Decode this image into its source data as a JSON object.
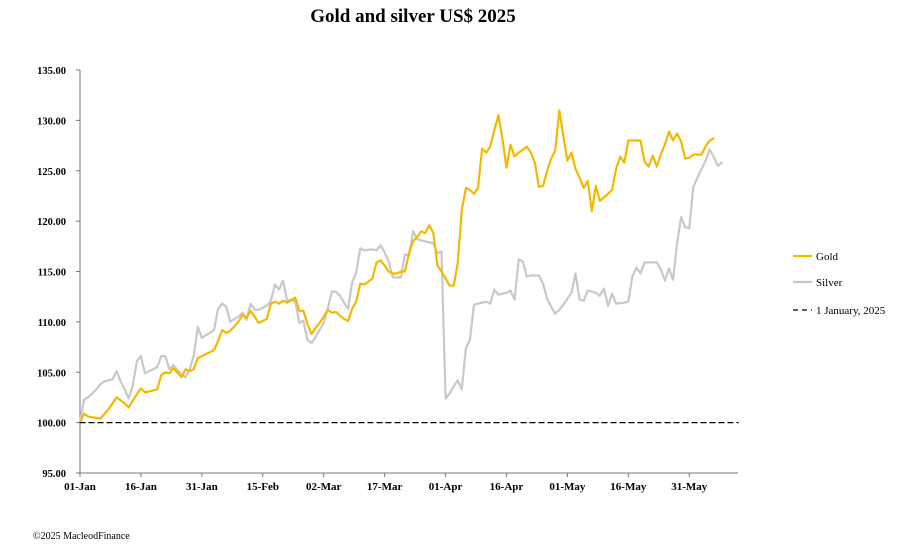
{
  "chart_data": {
    "type": "line",
    "title": "Gold and silver  US$ 2025",
    "ylim": [
      95,
      135
    ],
    "yticks": [
      "95.00",
      "100.00",
      "105.00",
      "110.00",
      "115.00",
      "120.00",
      "125.00",
      "130.00",
      "135.00"
    ],
    "x_tick_labels": [
      "01-Jan",
      "16-Jan",
      "31-Jan",
      "15-Feb",
      "02-Mar",
      "17-Mar",
      "01-Apr",
      "16-Apr",
      "01-May",
      "16-May",
      "31-May"
    ],
    "x_range_days": [
      0,
      162
    ],
    "grid": false,
    "legend_position": "right",
    "series": [
      {
        "name": "Gold",
        "color": "#F5B800",
        "dash": "",
        "points": [
          [
            0,
            100.0
          ],
          [
            1,
            100.9
          ],
          [
            2,
            100.6
          ],
          [
            5,
            100.4
          ],
          [
            7,
            101.3
          ],
          [
            9,
            102.5
          ],
          [
            11,
            101.9
          ],
          [
            12,
            101.5
          ],
          [
            13,
            102.2
          ],
          [
            15,
            103.4
          ],
          [
            16,
            103.0
          ],
          [
            18,
            103.2
          ],
          [
            19,
            103.3
          ],
          [
            20,
            104.7
          ],
          [
            21,
            105.0
          ],
          [
            22,
            104.9
          ],
          [
            23,
            105.4
          ],
          [
            25,
            104.5
          ],
          [
            26,
            105.3
          ],
          [
            27,
            105.1
          ],
          [
            28,
            105.3
          ],
          [
            29,
            106.4
          ],
          [
            31,
            106.8
          ],
          [
            33,
            107.2
          ],
          [
            34,
            108.1
          ],
          [
            35,
            109.2
          ],
          [
            36,
            108.9
          ],
          [
            37,
            109.1
          ],
          [
            39,
            110.0
          ],
          [
            40,
            110.7
          ],
          [
            41,
            110.4
          ],
          [
            42,
            111.1
          ],
          [
            44,
            109.9
          ],
          [
            45,
            110.1
          ],
          [
            46,
            110.3
          ],
          [
            47,
            111.8
          ],
          [
            48,
            112.0
          ],
          [
            49,
            111.8
          ],
          [
            50,
            112.1
          ],
          [
            51,
            111.9
          ],
          [
            53,
            112.4
          ],
          [
            54,
            111.1
          ],
          [
            55,
            111.1
          ],
          [
            56,
            109.8
          ],
          [
            57,
            108.8
          ],
          [
            58,
            109.4
          ],
          [
            59,
            109.9
          ],
          [
            60,
            110.5
          ],
          [
            61,
            111.2
          ],
          [
            62,
            110.9
          ],
          [
            63,
            111.0
          ],
          [
            64,
            110.6
          ],
          [
            65,
            110.3
          ],
          [
            66,
            110.1
          ],
          [
            67,
            111.3
          ],
          [
            68,
            112.0
          ],
          [
            69,
            113.8
          ],
          [
            70,
            113.7
          ],
          [
            72,
            114.3
          ],
          [
            73,
            115.9
          ],
          [
            74,
            116.1
          ],
          [
            75,
            115.6
          ],
          [
            76,
            115.0
          ],
          [
            77,
            114.8
          ],
          [
            78,
            114.8
          ],
          [
            79,
            115.0
          ],
          [
            80,
            115.0
          ],
          [
            81,
            116.8
          ],
          [
            82,
            118.0
          ],
          [
            83,
            118.4
          ],
          [
            84,
            119.0
          ],
          [
            85,
            118.8
          ],
          [
            86,
            119.6
          ],
          [
            87,
            118.8
          ],
          [
            88,
            115.6
          ],
          [
            89,
            115.0
          ],
          [
            90,
            114.3
          ],
          [
            91,
            113.6
          ],
          [
            92,
            113.6
          ],
          [
            93,
            115.8
          ],
          [
            94,
            121.1
          ],
          [
            95,
            123.3
          ],
          [
            96,
            123.1
          ],
          [
            97,
            122.7
          ],
          [
            98,
            123.3
          ],
          [
            99,
            127.2
          ],
          [
            100,
            126.8
          ],
          [
            101,
            127.4
          ],
          [
            102,
            129.0
          ],
          [
            103,
            130.5
          ],
          [
            104,
            128.2
          ],
          [
            105,
            125.3
          ],
          [
            106,
            127.6
          ],
          [
            107,
            126.4
          ],
          [
            108,
            126.8
          ],
          [
            110,
            127.4
          ],
          [
            111,
            126.8
          ],
          [
            112,
            125.8
          ],
          [
            113,
            123.4
          ],
          [
            114,
            123.5
          ],
          [
            115,
            125.0
          ],
          [
            116,
            126.2
          ],
          [
            117,
            127.0
          ],
          [
            118,
            131.0
          ],
          [
            119,
            128.5
          ],
          [
            120,
            126.0
          ],
          [
            121,
            126.8
          ],
          [
            122,
            125.2
          ],
          [
            123,
            124.3
          ],
          [
            124,
            123.3
          ],
          [
            125,
            124.0
          ],
          [
            126,
            121.0
          ],
          [
            127,
            123.5
          ],
          [
            128,
            122.0
          ],
          [
            130,
            122.7
          ],
          [
            131,
            123.1
          ],
          [
            132,
            125.2
          ],
          [
            133,
            126.4
          ],
          [
            134,
            125.8
          ],
          [
            135,
            128.0
          ],
          [
            136,
            128.0
          ],
          [
            137,
            128.0
          ],
          [
            138,
            128.0
          ],
          [
            139,
            125.9
          ],
          [
            140,
            125.4
          ],
          [
            141,
            126.5
          ],
          [
            142,
            125.4
          ],
          [
            143,
            126.6
          ],
          [
            144,
            127.6
          ],
          [
            145,
            128.9
          ],
          [
            146,
            128.0
          ],
          [
            147,
            128.7
          ],
          [
            148,
            127.9
          ],
          [
            149,
            126.2
          ],
          [
            150,
            126.3
          ],
          [
            151,
            126.6
          ],
          [
            153,
            126.6
          ],
          [
            154,
            127.4
          ],
          [
            155,
            128.0
          ],
          [
            156,
            128.2
          ]
        ]
      },
      {
        "name": "Silver",
        "color": "#C8C8C8",
        "dash": "",
        "points": [
          [
            0,
            100.0
          ],
          [
            1,
            102.3
          ],
          [
            2,
            102.5
          ],
          [
            3,
            102.9
          ],
          [
            4,
            103.3
          ],
          [
            5,
            103.8
          ],
          [
            6,
            104.1
          ],
          [
            8,
            104.3
          ],
          [
            9,
            105.1
          ],
          [
            10,
            104.1
          ],
          [
            11,
            103.3
          ],
          [
            12,
            102.4
          ],
          [
            13,
            103.7
          ],
          [
            14,
            106.1
          ],
          [
            15,
            106.6
          ],
          [
            16,
            104.9
          ],
          [
            17,
            105.1
          ],
          [
            18,
            105.3
          ],
          [
            19,
            105.5
          ],
          [
            20,
            106.6
          ],
          [
            21,
            106.6
          ],
          [
            22,
            105.3
          ],
          [
            23,
            105.7
          ],
          [
            24,
            105.2
          ],
          [
            25,
            104.8
          ],
          [
            26,
            104.5
          ],
          [
            27,
            105.3
          ],
          [
            28,
            106.6
          ],
          [
            29,
            109.5
          ],
          [
            30,
            108.4
          ],
          [
            31,
            108.7
          ],
          [
            32,
            108.9
          ],
          [
            33,
            109.2
          ],
          [
            34,
            111.3
          ],
          [
            35,
            111.8
          ],
          [
            36,
            111.5
          ],
          [
            37,
            110.0
          ],
          [
            38,
            110.3
          ],
          [
            39,
            110.5
          ],
          [
            40,
            110.9
          ],
          [
            41,
            110.2
          ],
          [
            42,
            111.8
          ],
          [
            43,
            111.2
          ],
          [
            44,
            111.2
          ],
          [
            45,
            111.4
          ],
          [
            46,
            111.6
          ],
          [
            47,
            112.1
          ],
          [
            48,
            113.7
          ],
          [
            49,
            113.2
          ],
          [
            50,
            114.1
          ],
          [
            51,
            112.1
          ],
          [
            52,
            112.2
          ],
          [
            53,
            112.0
          ],
          [
            54,
            109.9
          ],
          [
            55,
            110.1
          ],
          [
            56,
            108.2
          ],
          [
            57,
            107.9
          ],
          [
            58,
            108.5
          ],
          [
            59,
            109.2
          ],
          [
            60,
            109.9
          ],
          [
            61,
            111.3
          ],
          [
            62,
            113.0
          ],
          [
            63,
            113.0
          ],
          [
            64,
            112.6
          ],
          [
            65,
            111.9
          ],
          [
            66,
            111.3
          ],
          [
            67,
            113.9
          ],
          [
            68,
            114.9
          ],
          [
            69,
            117.3
          ],
          [
            70,
            117.1
          ],
          [
            72,
            117.2
          ],
          [
            73,
            117.1
          ],
          [
            74,
            117.6
          ],
          [
            75,
            116.9
          ],
          [
            76,
            116.0
          ],
          [
            77,
            114.4
          ],
          [
            78,
            114.4
          ],
          [
            79,
            114.4
          ],
          [
            80,
            116.7
          ],
          [
            81,
            116.6
          ],
          [
            82,
            119.0
          ],
          [
            83,
            118.2
          ],
          [
            84,
            118.1
          ],
          [
            85,
            118.0
          ],
          [
            86,
            117.9
          ],
          [
            87,
            117.8
          ],
          [
            88,
            116.8
          ],
          [
            89,
            117.0
          ],
          [
            90,
            102.4
          ],
          [
            91,
            102.9
          ],
          [
            92,
            103.6
          ],
          [
            93,
            104.2
          ],
          [
            94,
            103.3
          ],
          [
            95,
            107.4
          ],
          [
            96,
            108.2
          ],
          [
            97,
            111.7
          ],
          [
            98,
            111.8
          ],
          [
            99,
            111.9
          ],
          [
            100,
            112.0
          ],
          [
            101,
            111.8
          ],
          [
            102,
            113.2
          ],
          [
            103,
            112.7
          ],
          [
            105,
            112.9
          ],
          [
            106,
            113.1
          ],
          [
            107,
            112.2
          ],
          [
            108,
            116.2
          ],
          [
            109,
            116.0
          ],
          [
            110,
            114.5
          ],
          [
            111,
            114.6
          ],
          [
            113,
            114.6
          ],
          [
            114,
            113.8
          ],
          [
            115,
            112.3
          ],
          [
            116,
            111.5
          ],
          [
            117,
            110.8
          ],
          [
            118,
            111.2
          ],
          [
            119,
            111.7
          ],
          [
            120,
            112.3
          ],
          [
            121,
            112.9
          ],
          [
            122,
            114.8
          ],
          [
            123,
            112.2
          ],
          [
            124,
            112.1
          ],
          [
            125,
            113.1
          ],
          [
            127,
            112.9
          ],
          [
            128,
            112.6
          ],
          [
            129,
            113.3
          ],
          [
            130,
            111.6
          ],
          [
            131,
            112.8
          ],
          [
            132,
            111.8
          ],
          [
            134,
            111.9
          ],
          [
            135,
            112.0
          ],
          [
            136,
            114.5
          ],
          [
            137,
            115.4
          ],
          [
            138,
            114.8
          ],
          [
            139,
            115.9
          ],
          [
            141,
            115.9
          ],
          [
            142,
            115.9
          ],
          [
            143,
            115.2
          ],
          [
            144,
            114.1
          ],
          [
            145,
            115.3
          ],
          [
            146,
            114.2
          ],
          [
            147,
            117.8
          ],
          [
            148,
            120.4
          ],
          [
            149,
            119.4
          ],
          [
            150,
            119.3
          ],
          [
            151,
            123.4
          ],
          [
            152,
            124.3
          ],
          [
            154,
            126.0
          ],
          [
            155,
            127.1
          ],
          [
            156,
            126.4
          ],
          [
            157,
            125.5
          ],
          [
            158,
            125.8
          ]
        ]
      },
      {
        "name": "1 January, 2025",
        "color": "#000000",
        "dash": "5,4",
        "points": [
          [
            0,
            100.0
          ],
          [
            162,
            100.0
          ]
        ]
      }
    ]
  },
  "footer": {
    "copyright": "©2025 MacleodFinance"
  }
}
